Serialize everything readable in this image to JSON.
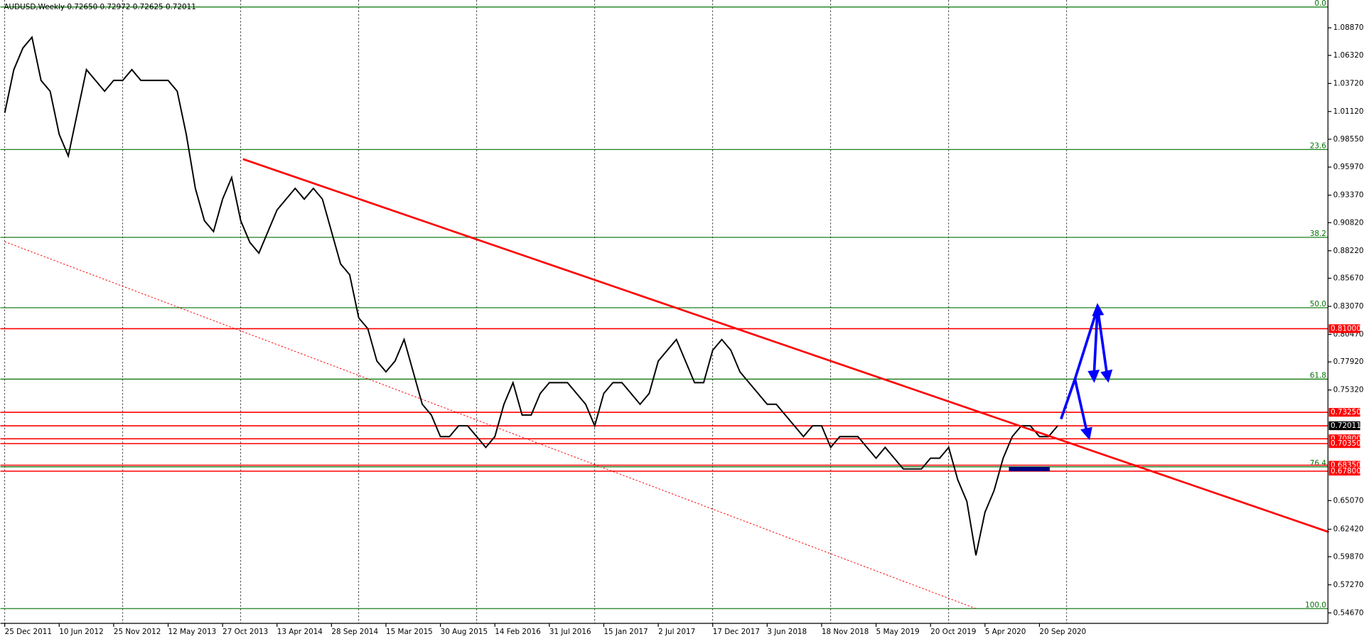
{
  "chart_data": {
    "type": "line",
    "title": "AUDUSD,Weekly  0.72650 0.72972 0.72625 0.72011",
    "color": "#000000",
    "values": [
      1.01,
      1.05,
      1.07,
      1.08,
      1.04,
      1.03,
      0.99,
      0.97,
      1.01,
      1.05,
      1.04,
      1.03,
      1.04,
      1.04,
      1.05,
      1.04,
      1.04,
      1.04,
      1.04,
      1.03,
      0.99,
      0.94,
      0.91,
      0.9,
      0.93,
      0.95,
      0.91,
      0.89,
      0.88,
      0.9,
      0.92,
      0.93,
      0.94,
      0.93,
      0.94,
      0.93,
      0.9,
      0.87,
      0.86,
      0.82,
      0.81,
      0.78,
      0.77,
      0.78,
      0.8,
      0.77,
      0.74,
      0.73,
      0.71,
      0.71,
      0.72,
      0.72,
      0.71,
      0.7,
      0.71,
      0.74,
      0.76,
      0.73,
      0.73,
      0.75,
      0.76,
      0.76,
      0.76,
      0.75,
      0.74,
      0.72,
      0.75,
      0.76,
      0.76,
      0.75,
      0.74,
      0.75,
      0.78,
      0.79,
      0.8,
      0.78,
      0.76,
      0.76,
      0.79,
      0.8,
      0.79,
      0.77,
      0.76,
      0.75,
      0.74,
      0.74,
      0.73,
      0.72,
      0.71,
      0.72,
      0.72,
      0.7,
      0.71,
      0.71,
      0.71,
      0.7,
      0.69,
      0.7,
      0.69,
      0.68,
      0.68,
      0.68,
      0.69,
      0.69,
      0.7,
      0.67,
      0.65,
      0.6,
      0.64,
      0.66,
      0.69,
      0.71,
      0.72,
      0.72,
      0.71,
      0.71,
      0.72
    ],
    "date_labels": [
      "25 Dec 2011",
      "10 Jun 2012",
      "25 Nov 2012",
      "12 May 2013",
      "27 Oct 2013",
      "13 Apr 2014",
      "28 Sep 2014",
      "15 Mar 2015",
      "30 Aug 2015",
      "14 Feb 2016",
      "31 Jul 2016",
      "15 Jan 2017",
      "2 Jul 2017",
      "17 Dec 2017",
      "3 Jun 2018",
      "18 Nov 2018",
      "5 May 2019",
      "20 Oct 2019",
      "5 Apr 2020",
      "20 Sep 2020"
    ],
    "ylim": [
      0.537,
      1.1145
    ],
    "yticks": [
      {
        "value": 1.0887,
        "label": "1.08870"
      },
      {
        "value": 1.0632,
        "label": "1.06320"
      },
      {
        "value": 1.0372,
        "label": "1.03720"
      },
      {
        "value": 1.0112,
        "label": "1.01120"
      },
      {
        "value": 0.9855,
        "label": "0.98550"
      },
      {
        "value": 0.9597,
        "label": "0.95970"
      },
      {
        "value": 0.9337,
        "label": "0.93370"
      },
      {
        "value": 0.9082,
        "label": "0.90820"
      },
      {
        "value": 0.8822,
        "label": "0.88220"
      },
      {
        "value": 0.8567,
        "label": "0.85670"
      },
      {
        "value": 0.8307,
        "label": "0.83070"
      },
      {
        "value": 0.8047,
        "label": "0.80470"
      },
      {
        "value": 0.7792,
        "label": "0.77920"
      },
      {
        "value": 0.7532,
        "label": "0.75320"
      },
      {
        "value": 0.6507,
        "label": "0.65070"
      },
      {
        "value": 0.6242,
        "label": "0.62420"
      },
      {
        "value": 0.5987,
        "label": "0.59870"
      },
      {
        "value": 0.5727,
        "label": "0.57270"
      },
      {
        "value": 0.5467,
        "label": "0.54670"
      }
    ],
    "fib_levels": [
      {
        "label": "0.0",
        "price": 1.108
      },
      {
        "label": "23.6",
        "price": 0.976
      },
      {
        "label": "38.2",
        "price": 0.8946
      },
      {
        "label": "50.0",
        "price": 0.8294
      },
      {
        "label": "61.8",
        "price": 0.7633
      },
      {
        "label": "76.4",
        "price": 0.682
      },
      {
        "label": "100.0",
        "price": 0.5507
      }
    ],
    "levels": [
      {
        "label": "0.81000",
        "price": 0.81
      },
      {
        "label": "0.73250",
        "price": 0.7325
      },
      {
        "label": "0.72000",
        "price": 0.72
      },
      {
        "label": "0.70800",
        "price": 0.708
      },
      {
        "label": "0.70350",
        "price": 0.7035
      },
      {
        "label": "0.68350",
        "price": 0.6835
      },
      {
        "label": "0.67800",
        "price": 0.678
      }
    ],
    "current_price": {
      "label": "0.72011",
      "price": 0.72011
    }
  }
}
